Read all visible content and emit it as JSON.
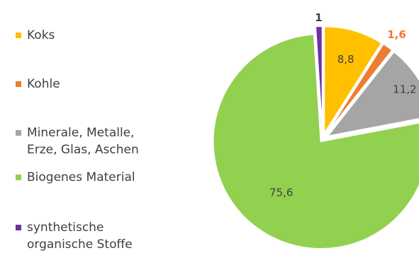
{
  "chart_data": {
    "type": "pie",
    "series": [
      {
        "values": [
          8.8,
          1.6,
          11.2,
          75.6,
          1
        ],
        "labels": [
          "8,8",
          "1,6",
          "11,2",
          "75,6",
          "1"
        ]
      }
    ],
    "categories": [
      "Koks",
      "Kohle",
      "Minerale, Metalle,\nErze, Glas, Aschen",
      "Biogenes Material",
      "synthetische\norganische Stoffe"
    ],
    "colors": [
      "#FFC000",
      "#ED7D31",
      "#A5A5A5",
      "#92D050",
      "#7030A0"
    ],
    "label_colors": [
      "#404040",
      "#ED7D31",
      "#404040",
      "#404040",
      "#404040"
    ],
    "legend": "left",
    "exploded": true,
    "start_angle": 0
  }
}
